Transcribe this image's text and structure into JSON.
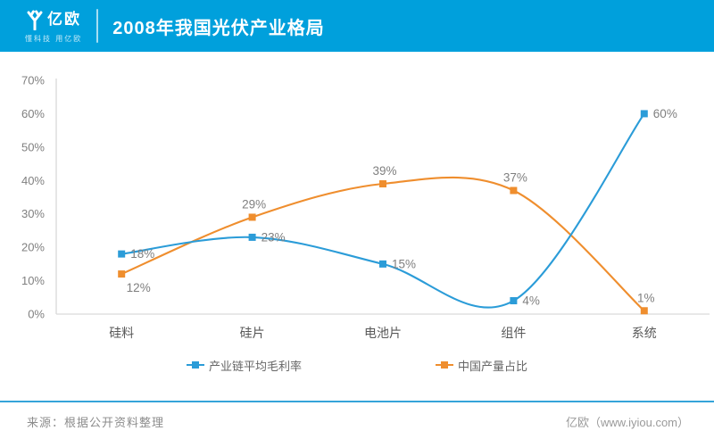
{
  "header": {
    "logo_text": "亿欧",
    "tagline": "懂科技 用亿欧",
    "title": "2008年我国光伏产业格局"
  },
  "colors": {
    "header_bg": "#00A0DC",
    "series_blue": "#2B9CD8",
    "series_orange": "#EF8E2E",
    "axis_line": "#D9D9D9",
    "tick_text": "#808080",
    "data_label_text": "#7F7F7F",
    "category_text": "#595959",
    "footer_line": "#35A4D9"
  },
  "chart_data": {
    "type": "line",
    "title": "2008年我国光伏产业格局",
    "categories": [
      "硅料",
      "硅片",
      "电池片",
      "组件",
      "系统"
    ],
    "series": [
      {
        "name": "产业链平均毛利率",
        "slug": "gross-margin",
        "color_key": "series_blue",
        "values": [
          18,
          23,
          15,
          4,
          60
        ],
        "data_labels": [
          "18%",
          "23%",
          "15%",
          "4%",
          "60%"
        ],
        "label_pos": [
          "right",
          "right",
          "right",
          "right",
          "right"
        ]
      },
      {
        "name": "中国产量占比",
        "slug": "china-output-share",
        "color_key": "series_orange",
        "values": [
          12,
          29,
          39,
          37,
          1
        ],
        "data_labels": [
          "12%",
          "29%",
          "39%",
          "37%",
          "1%"
        ],
        "label_pos": [
          "below-right",
          "above",
          "above",
          "above",
          "above"
        ]
      }
    ],
    "xlabel": "",
    "ylabel": "",
    "ylim": [
      0,
      70
    ],
    "ytick_labels": [
      "0%",
      "10%",
      "20%",
      "30%",
      "40%",
      "50%",
      "60%",
      "70%"
    ],
    "grid": false,
    "smooth": true,
    "legend_position": "bottom"
  },
  "footer": {
    "source": "来源：根据公开资料整理",
    "brand": "亿欧（www.iyiou.com）"
  }
}
